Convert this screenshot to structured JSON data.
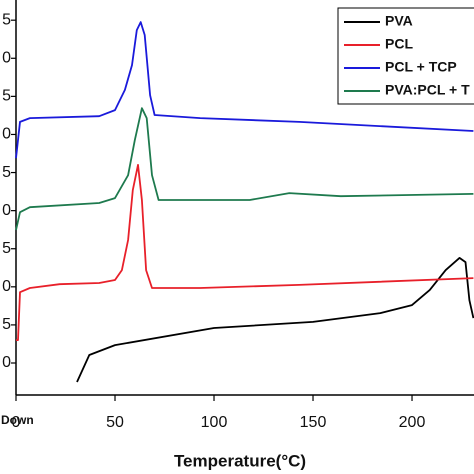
{
  "chart_data": {
    "type": "line",
    "xlabel": "Temperature(°C)",
    "annotation": "Down",
    "xlim": [
      0,
      231.3
    ],
    "xticks": [
      0,
      50,
      100,
      150,
      200
    ],
    "ylim": [
      -0.84,
      9.53
    ],
    "yticks": [
      {
        "value": 0,
        "label": "0"
      },
      {
        "value": 1,
        "label": "5"
      },
      {
        "value": 2,
        "label": "0"
      },
      {
        "value": 3,
        "label": "5"
      },
      {
        "value": 4,
        "label": "0"
      },
      {
        "value": 5,
        "label": "5"
      },
      {
        "value": 6,
        "label": "0"
      },
      {
        "value": 7,
        "label": "5"
      },
      {
        "value": 8,
        "label": "0"
      },
      {
        "value": 9,
        "label": "5"
      }
    ],
    "legend": "upper right",
    "series": [
      {
        "name": "PVA",
        "color": "#000000",
        "x": [
          30.8,
          37,
          50,
          100,
          150,
          184,
          200,
          209,
          217,
          224,
          227,
          229,
          231
        ],
        "values": [
          -0.5,
          0.21,
          0.47,
          0.92,
          1.08,
          1.31,
          1.52,
          1.92,
          2.44,
          2.76,
          2.65,
          1.65,
          1.18
        ]
      },
      {
        "name": "PCL",
        "color": "#e8202a",
        "x": [
          0,
          1,
          2,
          7,
          22,
          42,
          50,
          53.5,
          56.6,
          59,
          61.6,
          63.6,
          65.7,
          68.7,
          93,
          143,
          231
        ],
        "values": [
          0.6,
          0.6,
          1.86,
          1.97,
          2.07,
          2.1,
          2.18,
          2.44,
          3.23,
          4.54,
          5.2,
          4.28,
          2.44,
          1.97,
          1.97,
          2.05,
          2.23
        ]
      },
      {
        "name": "PCL + TCP",
        "color": "#1a1adb",
        "x": [
          0,
          2,
          7,
          42,
          50,
          55,
          58.6,
          61,
          63,
          65,
          67.7,
          70,
          93,
          143,
          231
        ],
        "values": [
          5.38,
          6.33,
          6.43,
          6.48,
          6.64,
          7.17,
          7.82,
          8.74,
          8.95,
          8.61,
          7.03,
          6.51,
          6.43,
          6.33,
          6.09
        ]
      },
      {
        "name": "PVA:PCL + T",
        "color": "#1e7a4e",
        "x": [
          0,
          2,
          7,
          42,
          50,
          56.6,
          60,
          63.6,
          66,
          68.7,
          72,
          93,
          118,
          138,
          164,
          231
        ],
        "values": [
          3.49,
          3.96,
          4.09,
          4.2,
          4.33,
          4.93,
          5.85,
          6.69,
          6.43,
          4.93,
          4.28,
          4.28,
          4.28,
          4.46,
          4.38,
          4.44
        ]
      }
    ]
  }
}
